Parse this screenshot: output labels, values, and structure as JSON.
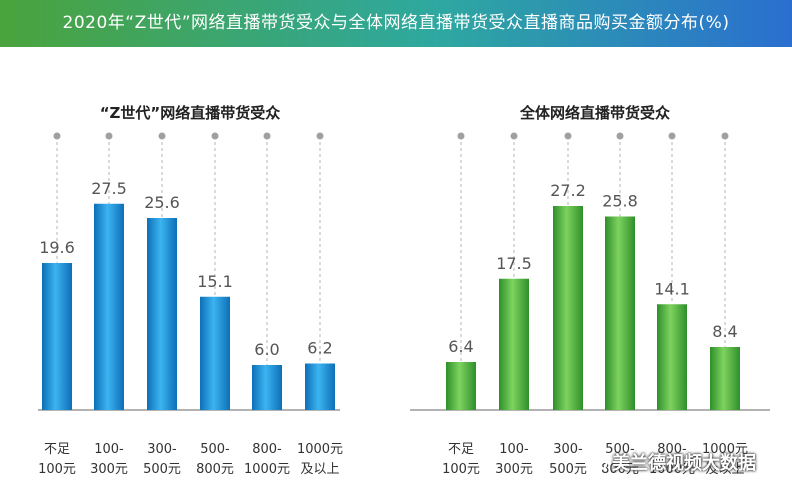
{
  "header": {
    "title": "2020年“Z世代”网络直播带货受众与全体网络直播带货受众直播商品购买金额分布(%)"
  },
  "watermark": {
    "text": "美兰德视频大数据"
  },
  "colors": {
    "blue_series": "#1a8fd8",
    "green_series": "#4cb440",
    "axis": "#999999",
    "label": "#555555"
  },
  "chart_data": [
    {
      "type": "bar",
      "title": "“Z世代”网络直播带货受众",
      "categories": [
        "不足\n100元",
        "100-\n300元",
        "300-\n500元",
        "500-\n800元",
        "800-\n1000元",
        "1000元\n及以上"
      ],
      "values": [
        19.6,
        27.5,
        25.6,
        15.1,
        6.0,
        6.2
      ],
      "ylim": [
        0,
        30
      ],
      "color": "#1a8fd8"
    },
    {
      "type": "bar",
      "title": "全体网络直播带货受众",
      "categories": [
        "不足\n100元",
        "100-\n300元",
        "300-\n500元",
        "500-\n800元",
        "800-\n1000元",
        "1000元\n及以上"
      ],
      "values": [
        6.4,
        17.5,
        27.2,
        25.8,
        14.1,
        8.4
      ],
      "ylim": [
        0,
        30
      ],
      "color": "#4cb440"
    }
  ]
}
